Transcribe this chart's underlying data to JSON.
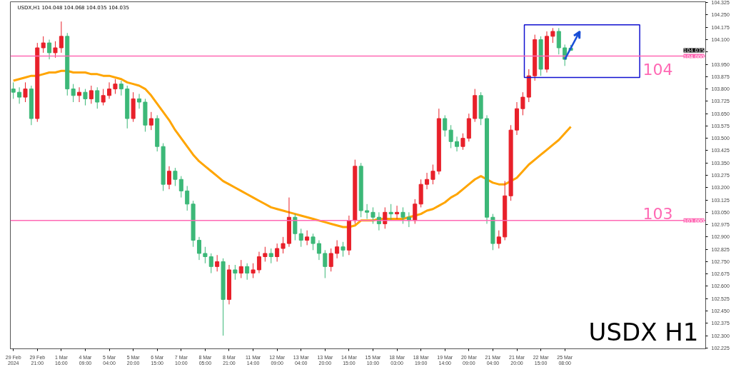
{
  "chart_data": {
    "type": "candlestick",
    "title": "USDX,H1  104.048 104.068 104.035 104.035",
    "categories": [
      "29 Feb 2024",
      null,
      null,
      null,
      "29 Feb 21:00",
      null,
      null,
      null,
      "1 Mar 16:00",
      null,
      null,
      null,
      "4 Mar 09:00",
      null,
      null,
      null,
      "5 Mar 04:00",
      null,
      null,
      null,
      "5 Mar 20:00",
      null,
      null,
      null,
      "6 Mar 15:00",
      null,
      null,
      null,
      "7 Mar 10:00",
      null,
      null,
      null,
      "8 Mar 05:00",
      null,
      null,
      null,
      "8 Mar 21:00",
      null,
      null,
      null,
      "11 Mar 14:00",
      null,
      null,
      null,
      "12 Mar 09:00",
      null,
      null,
      null,
      "13 Mar 04:00",
      null,
      null,
      null,
      "13 Mar 20:00",
      null,
      null,
      null,
      "14 Mar 15:00",
      null,
      null,
      null,
      "15 Mar 10:00",
      null,
      null,
      null,
      "18 Mar 03:00",
      null,
      null,
      null,
      "18 Mar 19:00",
      null,
      null,
      null,
      "19 Mar 14:00",
      null,
      null,
      null,
      "20 Mar 09:00",
      null,
      null,
      null,
      "21 Mar 04:00",
      null,
      null,
      null,
      "21 Mar 20:00",
      null,
      null,
      null,
      "22 Mar 15:00",
      null,
      null,
      null,
      "25 Mar 08:00",
      null,
      null,
      null,
      null,
      null,
      null,
      null,
      null,
      null,
      null,
      null,
      null,
      null,
      null,
      null,
      null,
      null,
      null,
      null,
      null,
      null,
      null,
      null
    ],
    "ohlc": [
      [
        103.8,
        103.84,
        103.74,
        103.78
      ],
      [
        103.78,
        103.81,
        103.71,
        103.75
      ],
      [
        103.75,
        103.84,
        103.72,
        103.8
      ],
      [
        103.8,
        103.82,
        103.58,
        103.62
      ],
      [
        103.62,
        104.08,
        103.6,
        104.05
      ],
      [
        104.05,
        104.12,
        104.02,
        104.08
      ],
      [
        104.08,
        104.1,
        103.98,
        104.02
      ],
      [
        104.02,
        104.09,
        103.99,
        104.05
      ],
      [
        104.05,
        104.21,
        104.02,
        104.12
      ],
      [
        104.12,
        104.14,
        103.76,
        103.8
      ],
      [
        103.8,
        103.83,
        103.72,
        103.76
      ],
      [
        103.76,
        103.81,
        103.72,
        103.78
      ],
      [
        103.78,
        103.8,
        103.7,
        103.74
      ],
      [
        103.74,
        103.82,
        103.71,
        103.79
      ],
      [
        103.79,
        103.81,
        103.68,
        103.72
      ],
      [
        103.72,
        103.8,
        103.7,
        103.76
      ],
      [
        103.76,
        103.84,
        103.74,
        103.8
      ],
      [
        103.8,
        103.86,
        103.77,
        103.83
      ],
      [
        103.83,
        103.85,
        103.76,
        103.8
      ],
      [
        103.8,
        103.82,
        103.56,
        103.62
      ],
      [
        103.62,
        103.78,
        103.6,
        103.74
      ],
      [
        103.74,
        103.77,
        103.68,
        103.72
      ],
      [
        103.72,
        103.74,
        103.54,
        103.58
      ],
      [
        103.58,
        103.66,
        103.55,
        103.62
      ],
      [
        103.62,
        103.64,
        103.42,
        103.45
      ],
      [
        103.45,
        103.47,
        103.18,
        103.22
      ],
      [
        103.22,
        103.33,
        103.19,
        103.3
      ],
      [
        103.3,
        103.32,
        103.21,
        103.25
      ],
      [
        103.25,
        103.27,
        103.14,
        103.18
      ],
      [
        103.18,
        103.21,
        103.06,
        103.1
      ],
      [
        103.1,
        103.12,
        102.84,
        102.88
      ],
      [
        102.88,
        102.9,
        102.76,
        102.8
      ],
      [
        102.8,
        102.84,
        102.74,
        102.78
      ],
      [
        102.78,
        102.8,
        102.68,
        102.72
      ],
      [
        102.72,
        102.79,
        102.69,
        102.75
      ],
      [
        102.75,
        102.77,
        102.3,
        102.52
      ],
      [
        102.52,
        102.73,
        102.49,
        102.7
      ],
      [
        102.7,
        102.73,
        102.64,
        102.68
      ],
      [
        102.68,
        102.76,
        102.65,
        102.72
      ],
      [
        102.72,
        102.74,
        102.64,
        102.68
      ],
      [
        102.68,
        102.74,
        102.65,
        102.7
      ],
      [
        102.7,
        102.81,
        102.68,
        102.78
      ],
      [
        102.78,
        102.84,
        102.75,
        102.8
      ],
      [
        102.8,
        102.83,
        102.74,
        102.78
      ],
      [
        102.78,
        102.86,
        102.75,
        102.83
      ],
      [
        102.83,
        102.9,
        102.8,
        102.86
      ],
      [
        102.86,
        103.14,
        102.84,
        103.02
      ],
      [
        103.02,
        103.04,
        102.88,
        102.92
      ],
      [
        102.92,
        102.95,
        102.84,
        102.88
      ],
      [
        102.88,
        102.94,
        102.85,
        102.9
      ],
      [
        102.9,
        102.92,
        102.82,
        102.86
      ],
      [
        102.86,
        102.88,
        102.76,
        102.8
      ],
      [
        102.8,
        102.82,
        102.65,
        102.72
      ],
      [
        102.72,
        102.83,
        102.69,
        102.8
      ],
      [
        102.8,
        102.88,
        102.77,
        102.84
      ],
      [
        102.84,
        102.87,
        102.78,
        102.82
      ],
      [
        102.82,
        103.03,
        102.79,
        103.0
      ],
      [
        103.0,
        103.37,
        102.98,
        103.33
      ],
      [
        103.33,
        103.35,
        103.02,
        103.06
      ],
      [
        103.06,
        103.1,
        103.01,
        103.05
      ],
      [
        103.05,
        103.08,
        102.98,
        103.02
      ],
      [
        103.02,
        103.05,
        102.94,
        102.98
      ],
      [
        102.98,
        103.08,
        102.95,
        103.05
      ],
      [
        103.05,
        103.1,
        103.0,
        103.04
      ],
      [
        103.04,
        103.09,
        103.01,
        103.05
      ],
      [
        103.05,
        103.08,
        102.98,
        103.02
      ],
      [
        103.02,
        103.05,
        102.96,
        103.0
      ],
      [
        103.0,
        103.13,
        102.98,
        103.1
      ],
      [
        103.1,
        103.25,
        103.08,
        103.22
      ],
      [
        103.22,
        103.29,
        103.19,
        103.25
      ],
      [
        103.25,
        103.34,
        103.22,
        103.3
      ],
      [
        103.3,
        103.68,
        103.28,
        103.62
      ],
      [
        103.62,
        103.64,
        103.51,
        103.55
      ],
      [
        103.55,
        103.58,
        103.44,
        103.48
      ],
      [
        103.48,
        103.51,
        103.42,
        103.45
      ],
      [
        103.45,
        103.53,
        103.43,
        103.5
      ],
      [
        103.5,
        103.65,
        103.48,
        103.62
      ],
      [
        103.62,
        103.8,
        103.6,
        103.76
      ],
      [
        103.76,
        103.78,
        103.58,
        103.62
      ],
      [
        103.62,
        103.64,
        102.98,
        103.02
      ],
      [
        103.02,
        103.04,
        102.82,
        102.86
      ],
      [
        102.86,
        102.94,
        102.83,
        102.9
      ],
      [
        102.9,
        103.24,
        102.88,
        103.15
      ],
      [
        103.15,
        103.58,
        103.12,
        103.55
      ],
      [
        103.55,
        103.72,
        103.52,
        103.68
      ],
      [
        103.68,
        103.78,
        103.64,
        103.75
      ],
      [
        103.75,
        103.92,
        103.72,
        103.88
      ],
      [
        103.88,
        104.13,
        103.85,
        104.1
      ],
      [
        104.1,
        104.12,
        103.88,
        103.92
      ],
      [
        103.92,
        104.15,
        103.9,
        104.12
      ],
      [
        104.12,
        104.17,
        104.08,
        104.15
      ],
      [
        104.15,
        104.17,
        104.01,
        104.05
      ],
      [
        104.05,
        104.07,
        103.94,
        103.98
      ],
      [
        104.048,
        104.068,
        104.035,
        104.035
      ],
      null,
      null,
      null,
      null,
      null,
      null,
      null,
      null,
      null,
      null,
      null,
      null,
      null,
      null,
      null,
      null,
      null,
      null,
      null,
      null,
      null,
      null
    ],
    "colors": [
      "#3cb878",
      "#3cb878",
      "#e8202a",
      "#3cb878",
      "#e8202a",
      "#e8202a",
      "#3cb878",
      "#e8202a",
      "#e8202a",
      "#3cb878",
      "#3cb878",
      "#e8202a",
      "#3cb878",
      "#e8202a",
      "#3cb878",
      "#e8202a",
      "#e8202a",
      "#e8202a",
      "#3cb878",
      "#3cb878",
      "#e8202a",
      "#3cb878",
      "#3cb878",
      "#e8202a",
      "#3cb878",
      "#3cb878",
      "#e8202a",
      "#3cb878",
      "#3cb878",
      "#3cb878",
      "#3cb878",
      "#3cb878",
      "#3cb878",
      "#3cb878",
      "#e8202a",
      "#3cb878",
      "#e8202a",
      "#3cb878",
      "#e8202a",
      "#3cb878",
      "#e8202a",
      "#e8202a",
      "#e8202a",
      "#3cb878",
      "#e8202a",
      "#e8202a",
      "#e8202a",
      "#3cb878",
      "#3cb878",
      "#e8202a",
      "#3cb878",
      "#3cb878",
      "#3cb878",
      "#e8202a",
      "#e8202a",
      "#3cb878",
      "#e8202a",
      "#e8202a",
      "#3cb878",
      "#3cb878",
      "#3cb878",
      "#3cb878",
      "#e8202a",
      "#3cb878",
      "#e8202a",
      "#3cb878",
      "#3cb878",
      "#e8202a",
      "#e8202a",
      "#e8202a",
      "#e8202a",
      "#e8202a",
      "#3cb878",
      "#3cb878",
      "#3cb878",
      "#e8202a",
      "#e8202a",
      "#e8202a",
      "#3cb878",
      "#3cb878",
      "#3cb878",
      "#e8202a",
      "#e8202a",
      "#e8202a",
      "#e8202a",
      "#e8202a",
      "#e8202a",
      "#e8202a",
      "#3cb878",
      "#e8202a",
      "#e8202a",
      "#3cb878",
      "#3cb878",
      "#3cb878",
      null,
      null,
      null,
      null,
      null,
      null,
      null,
      null,
      null,
      null,
      null,
      null,
      null,
      null,
      null,
      null,
      null,
      null,
      null,
      null,
      null,
      null
    ],
    "series": [
      {
        "type": "line",
        "color": "#ffa500",
        "values": [
          103.85,
          103.86,
          103.87,
          103.88,
          103.88,
          103.89,
          103.9,
          103.9,
          103.91,
          103.91,
          103.9,
          103.9,
          103.9,
          103.89,
          103.89,
          103.88,
          103.88,
          103.87,
          103.86,
          103.84,
          103.83,
          103.82,
          103.8,
          103.76,
          103.71,
          103.66,
          103.61,
          103.55,
          103.5,
          103.45,
          103.4,
          103.36,
          103.33,
          103.3,
          103.27,
          103.24,
          103.22,
          103.2,
          103.18,
          103.16,
          103.14,
          103.12,
          103.1,
          103.08,
          103.07,
          103.06,
          103.05,
          103.04,
          103.03,
          103.02,
          103.01,
          103.0,
          102.99,
          102.98,
          102.97,
          102.96,
          102.96,
          102.97,
          103.0,
          103.0,
          103.0,
          103.01,
          103.01,
          103.01,
          103.01,
          103.01,
          103.02,
          103.03,
          103.04,
          103.06,
          103.07,
          103.09,
          103.11,
          103.14,
          103.16,
          103.19,
          103.22,
          103.25,
          103.27,
          103.25,
          103.23,
          103.22,
          103.22,
          103.24,
          103.26,
          103.3,
          103.34,
          103.37,
          103.4,
          103.43,
          103.46,
          103.49,
          103.53,
          103.57,
          null,
          null,
          null,
          null,
          null,
          null,
          null,
          null,
          null,
          null,
          null,
          null,
          null,
          null,
          null,
          null,
          null,
          null,
          null,
          null,
          null,
          null
        ]
      }
    ],
    "ylim": [
      102.22,
      104.33
    ],
    "yticks": [
      {
        "value": 102.225,
        "label": "102.225"
      },
      {
        "value": 102.3,
        "label": "102.300"
      },
      {
        "value": 102.375,
        "label": "102.375"
      },
      {
        "value": 102.45,
        "label": "102.450"
      },
      {
        "value": 102.525,
        "label": "102.525"
      },
      {
        "value": 102.6,
        "label": "102.600"
      },
      {
        "value": 102.675,
        "label": "102.675"
      },
      {
        "value": 102.75,
        "label": "102.750"
      },
      {
        "value": 102.825,
        "label": "102.825"
      },
      {
        "value": 102.9,
        "label": "102.900"
      },
      {
        "value": 102.975,
        "label": "102.975"
      },
      {
        "value": 103.05,
        "label": "103.050"
      },
      {
        "value": 103.125,
        "label": "103.125"
      },
      {
        "value": 103.2,
        "label": "103.200"
      },
      {
        "value": 103.275,
        "label": "103.275"
      },
      {
        "value": 103.35,
        "label": "103.350"
      },
      {
        "value": 103.425,
        "label": "103.425"
      },
      {
        "value": 103.5,
        "label": "103.500"
      },
      {
        "value": 103.575,
        "label": "103.575"
      },
      {
        "value": 103.65,
        "label": "103.650"
      },
      {
        "value": 103.725,
        "label": "103.725"
      },
      {
        "value": 103.8,
        "label": "103.800"
      },
      {
        "value": 103.875,
        "label": "103.875"
      },
      {
        "value": 103.95,
        "label": "103.950"
      },
      {
        "value": 104.025,
        "label": null
      },
      {
        "value": 104.1,
        "label": "104.100"
      },
      {
        "value": 104.175,
        "label": "104.175"
      },
      {
        "value": 104.25,
        "label": "104.250"
      },
      {
        "value": 104.325,
        "label": "104.325"
      }
    ],
    "ref_lines": [
      {
        "axis": "y",
        "value": 104,
        "label": "104",
        "color": "#ff69b4"
      },
      {
        "axis": "y",
        "value": 103,
        "label": "103",
        "color": "#ff69b4"
      }
    ],
    "annotations": [
      "USDX H1",
      "104.035",
      {
        "text": "104.000",
        "y": 104
      },
      {
        "text": "103.000",
        "y": 103
      }
    ],
    "grid": false
  }
}
